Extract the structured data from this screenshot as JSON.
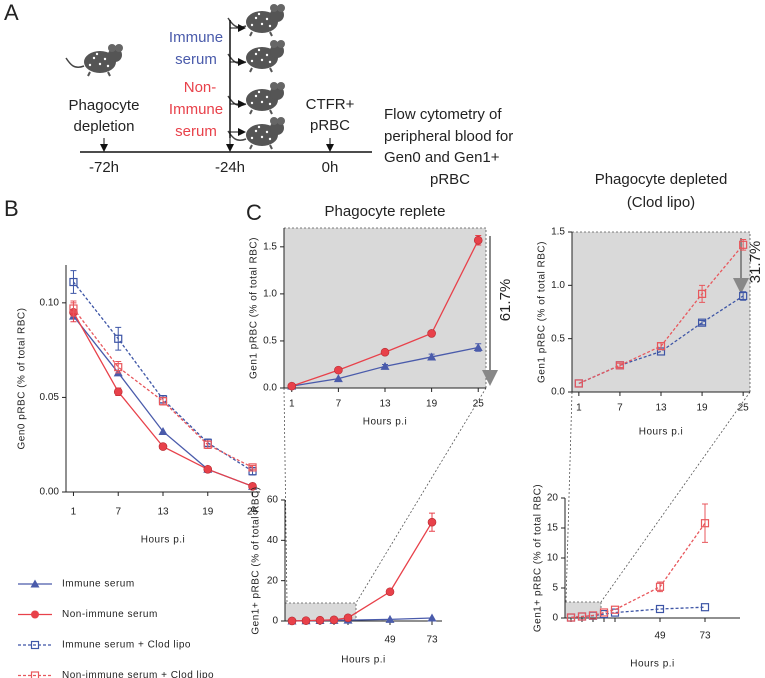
{
  "panel_labels": [
    "A",
    "B",
    "C"
  ],
  "diagram": {
    "immune_serum": [
      "Immune",
      "serum"
    ],
    "non_immune_serum": [
      "Non-",
      "Immune",
      "serum"
    ],
    "depletion": [
      "Phagocyte",
      "depletion"
    ],
    "ctfr": [
      "CTFR+",
      "pRBC"
    ],
    "readout": [
      "Flow cytometry of",
      "peripheral blood for",
      "Gen0 and Gen1+",
      "pRBC"
    ],
    "timeline": [
      "-72h",
      "-24h",
      "0h"
    ]
  },
  "chart_data": [
    {
      "type": "line",
      "x": [
        1,
        7,
        13,
        19,
        25
      ],
      "xlim": [
        0,
        26
      ],
      "xticks": [
        1,
        7,
        13,
        19,
        25
      ],
      "ylim": [
        0,
        0.12
      ],
      "yticks": [
        {
          "value": 0,
          "label": "0.00"
        },
        {
          "value": 0.05,
          "label": "0.05"
        },
        {
          "value": 0.1,
          "label": "0.10"
        }
      ],
      "xlabel": "Hours p.i",
      "ylabel": "Gen0 pRBC (% of total RBC)",
      "series": [
        {
          "name": "Immune serum",
          "color": "#4a5bab",
          "marker": "triangle",
          "dashed": false,
          "values": [
            0.093,
            0.063,
            0.032,
            0.012,
            0.003
          ]
        },
        {
          "name": "Non-immune serum",
          "color": "#e8414a",
          "marker": "circle",
          "dashed": false,
          "values": [
            0.095,
            0.053,
            0.024,
            0.012,
            0.003
          ],
          "errors": [
            0.005,
            0.002,
            0.001,
            0.001,
            0.001
          ]
        },
        {
          "name": "Immune serum + Clod lipo",
          "color": "#3d55a6",
          "marker": "square",
          "dashed": true,
          "values": [
            0.111,
            0.081,
            0.049,
            0.026,
            0.011
          ],
          "errors": [
            0.006,
            0.006,
            0.002,
            0.002,
            0.002
          ]
        },
        {
          "name": "Non-immune serum + Clod lipo",
          "color": "#e8575c",
          "marker": "square",
          "dashed": true,
          "values": [
            0.097,
            0.066,
            0.048,
            0.025,
            0.013
          ],
          "errors": [
            0.004,
            0.003,
            0.002,
            0.002,
            0.001
          ]
        }
      ]
    },
    {
      "type": "line",
      "title": "Phagocyte replete",
      "x": [
        1,
        7,
        13,
        19,
        25
      ],
      "xlim": [
        0,
        26
      ],
      "xticks": [
        1,
        7,
        13,
        19,
        25
      ],
      "ylim": [
        0,
        1.7
      ],
      "yticks": [
        {
          "value": 0,
          "label": "0.0"
        },
        {
          "value": 0.5,
          "label": "0.5"
        },
        {
          "value": 1,
          "label": "1.0"
        },
        {
          "value": 1.5,
          "label": "1.5"
        }
      ],
      "xlabel": "Hours p.i",
      "ylabel": "Gen1 pRBC (% of total RBC)",
      "background": "#d9d9d9",
      "annotation": "61.7%",
      "series": [
        {
          "color": "#4a5bab",
          "marker": "triangle",
          "dashed": false,
          "values": [
            0.02,
            0.1,
            0.23,
            0.33,
            0.43
          ],
          "errors": [
            null,
            null,
            0.02,
            0.03,
            0.04
          ]
        },
        {
          "color": "#e8414a",
          "marker": "circle",
          "dashed": false,
          "values": [
            0.02,
            0.19,
            0.38,
            0.58,
            1.57
          ],
          "errors": [
            null,
            null,
            null,
            null,
            0.05
          ]
        }
      ]
    },
    {
      "type": "line",
      "title": "Phagocyte depleted",
      "subtitle": "(Clod lipo)",
      "x": [
        1,
        7,
        13,
        19,
        25
      ],
      "xlim": [
        0,
        26
      ],
      "xticks": [
        1,
        7,
        13,
        19,
        25
      ],
      "ylim": [
        0,
        1.5
      ],
      "yticks": [
        {
          "value": 0,
          "label": "0.0"
        },
        {
          "value": 0.5,
          "label": "0.5"
        },
        {
          "value": 1,
          "label": "1.0"
        },
        {
          "value": 1.5,
          "label": "1.5"
        }
      ],
      "xlabel": "Hours p.i",
      "ylabel": "Gen1 pRBC (% of total RBC)",
      "background": "#d9d9d9",
      "annotation": "31.7%",
      "series": [
        {
          "color": "#3d55a6",
          "marker": "square",
          "dashed": true,
          "values": [
            0.08,
            0.25,
            0.38,
            0.65,
            0.9
          ],
          "errors": [
            null,
            null,
            null,
            0.02,
            0.04
          ]
        },
        {
          "color": "#e8575c",
          "marker": "square",
          "dashed": true,
          "values": [
            0.08,
            0.25,
            0.43,
            0.92,
            1.38
          ],
          "errors": [
            null,
            0.02,
            0.03,
            0.08,
            0.05
          ]
        }
      ]
    },
    {
      "type": "line",
      "categories": [
        null,
        null,
        null,
        null,
        null,
        "49",
        "73"
      ],
      "ylim": [
        0,
        60
      ],
      "yticks": [
        0,
        20,
        40,
        60
      ],
      "xlabel": "Hours p.i",
      "ylabel": "Gen1+ pRBC (% of total RBC)",
      "series": [
        {
          "color": "#4a5bab",
          "marker": "triangle",
          "dashed": false,
          "values": [
            0.02,
            0.1,
            0.23,
            0.33,
            0.43,
            0.8,
            1.5
          ]
        },
        {
          "color": "#e8414a",
          "marker": "circle",
          "dashed": false,
          "values": [
            0.02,
            0.19,
            0.38,
            0.58,
            1.57,
            14.5,
            49
          ],
          "errors": [
            null,
            null,
            null,
            null,
            null,
            1,
            4.5
          ]
        }
      ]
    },
    {
      "type": "line",
      "categories": [
        null,
        null,
        null,
        null,
        null,
        "49",
        "73"
      ],
      "ylim": [
        0,
        20
      ],
      "yticks": [
        0,
        5,
        10,
        15,
        20
      ],
      "xlabel": "Hours p.i",
      "ylabel": "Gen1+ pRBC (% of total RBC)",
      "series": [
        {
          "color": "#3d55a6",
          "marker": "square",
          "dashed": true,
          "values": [
            0.08,
            0.25,
            0.38,
            0.65,
            0.9,
            1.5,
            1.8
          ]
        },
        {
          "color": "#e8575c",
          "marker": "square",
          "dashed": true,
          "values": [
            0.08,
            0.25,
            0.43,
            0.92,
            1.38,
            5.2,
            15.8
          ],
          "errors": [
            null,
            null,
            null,
            null,
            null,
            0.8,
            3.2
          ]
        }
      ]
    }
  ]
}
